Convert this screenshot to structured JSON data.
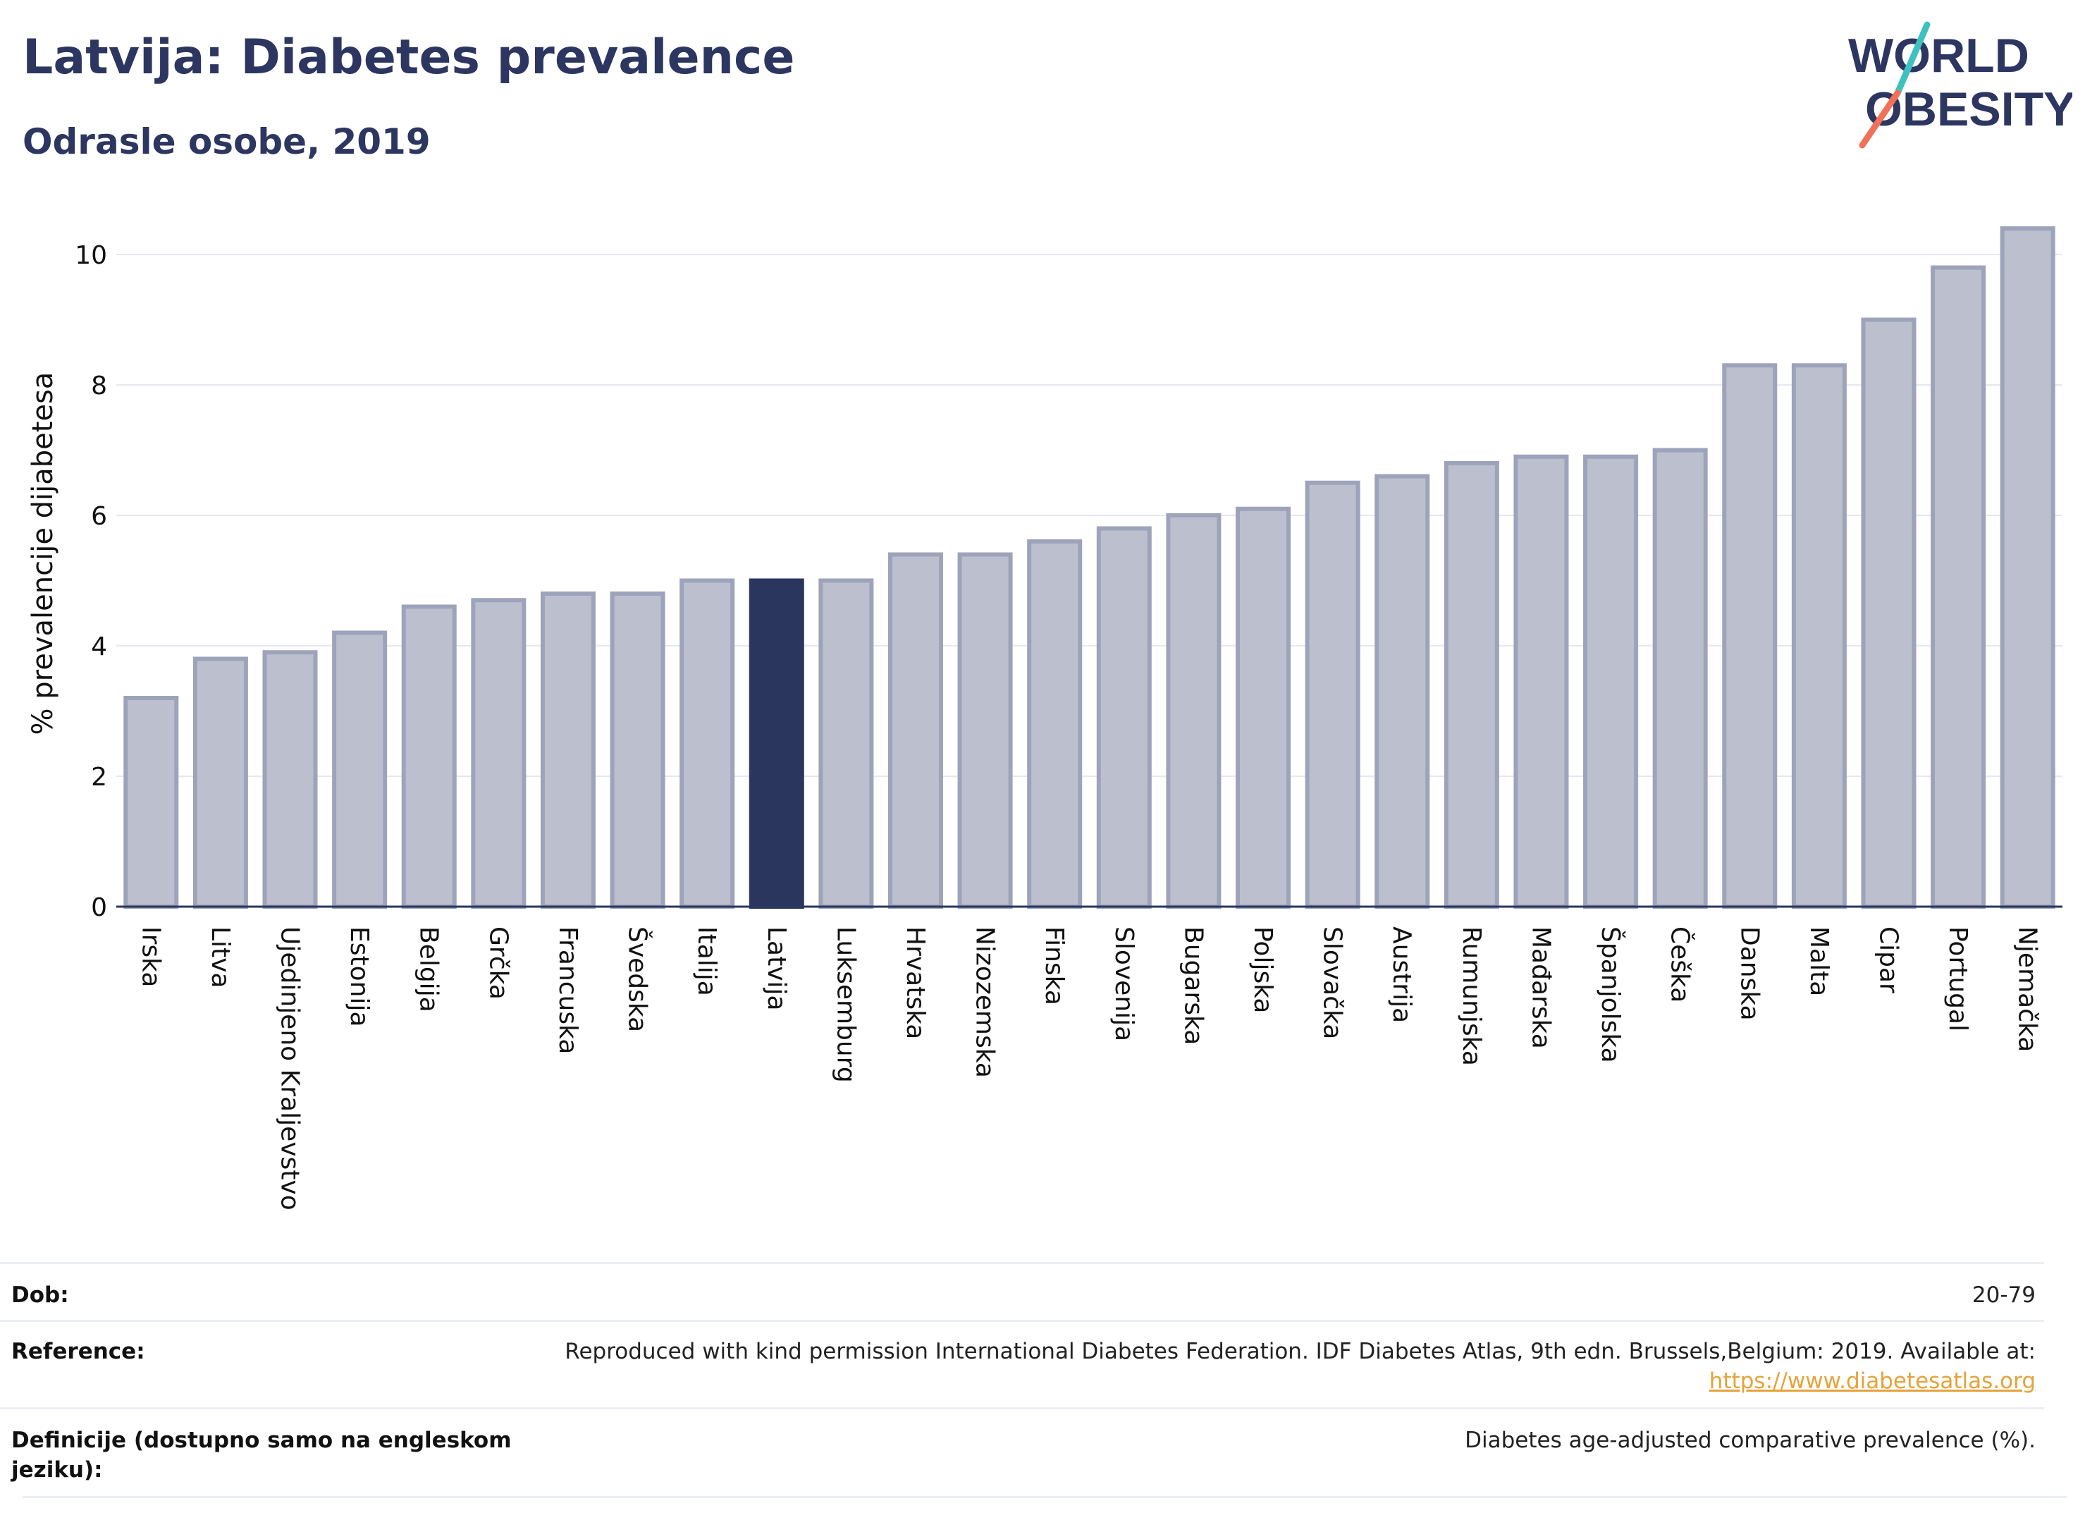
{
  "header": {
    "title": "Latvija: Diabetes prevalence",
    "subtitle": "Odrasle osobe, 2019"
  },
  "logo": {
    "line1": "WORLD",
    "line2": "OBESITY"
  },
  "colors": {
    "bar": "#bcc0ce",
    "bar_border": "#9da3ba",
    "highlight": "#2b365f",
    "title": "#2c3660",
    "logo_teal": "#3fc1c0",
    "logo_red": "#f07158",
    "link": "#e5a33a"
  },
  "chart_data": {
    "type": "bar",
    "ylabel": "% prevalencije dijabetesa",
    "xlabel": "",
    "ylim": [
      0,
      10.8
    ],
    "yticks": [
      0,
      2,
      4,
      6,
      8,
      10
    ],
    "grid": true,
    "highlight": "Latvija",
    "categories": [
      "Irska",
      "Litva",
      "Ujedinjeno Kraljevstvo",
      "Estonija",
      "Belgija",
      "Grčka",
      "Francuska",
      "Švedska",
      "Italija",
      "Latvija",
      "Luksemburg",
      "Hrvatska",
      "Nizozemska",
      "Finska",
      "Slovenija",
      "Bugarska",
      "Poljska",
      "Slovačka",
      "Austrija",
      "Rumunjska",
      "Mađarska",
      "Španjolska",
      "Češka",
      "Danska",
      "Malta",
      "Cipar",
      "Portugal",
      "Njemačka"
    ],
    "values": [
      3.2,
      3.8,
      3.9,
      4.2,
      4.6,
      4.7,
      4.8,
      4.8,
      5.0,
      5.0,
      5.0,
      5.4,
      5.4,
      5.6,
      5.8,
      6.0,
      6.1,
      6.5,
      6.6,
      6.8,
      6.9,
      6.9,
      7.0,
      8.3,
      8.3,
      9.0,
      9.8,
      10.4
    ]
  },
  "info": {
    "age_label": "Dob:",
    "age_value": "20-79",
    "reference_label": "Reference:",
    "reference_text": "Reproduced with kind permission International Diabetes Federation. IDF Diabetes Atlas, 9th edn. Brussels,Belgium: 2019. Available at:",
    "reference_link": "https://www.diabetesatlas.org",
    "definition_label_1": "Definicije (dostupno samo na engleskom",
    "definition_label_2": "jeziku):",
    "definition_text": "Diabetes age-adjusted comparative prevalence (%)."
  }
}
